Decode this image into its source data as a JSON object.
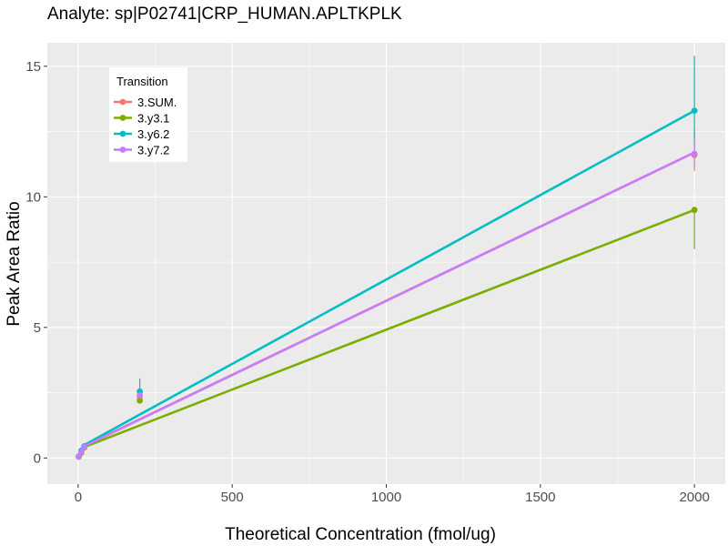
{
  "chart_data": {
    "type": "line",
    "title": "Analyte: sp|P02741|CRP_HUMAN.APLTKPLK",
    "xlabel": "Theoretical Concentration (fmol/ug)",
    "ylabel": "Peak Area Ratio",
    "xlim": [
      -100,
      2100
    ],
    "ylim": [
      -1.0,
      15.9
    ],
    "x_ticks": [
      0,
      500,
      1000,
      1500,
      2000
    ],
    "y_ticks": [
      0,
      5,
      10,
      15
    ],
    "grid": true,
    "legend": {
      "title": "Transition",
      "position": "top-left"
    },
    "series": [
      {
        "name": "3.SUM.",
        "color": "#F8766D",
        "fit": [
          [
            20,
            0.46
          ],
          [
            2000,
            11.7
          ]
        ],
        "points": [
          {
            "x": 2,
            "y": 0.05,
            "lo": 0.05,
            "hi": 0.05
          },
          {
            "x": 10,
            "y": 0.25,
            "lo": 0.25,
            "hi": 0.25
          },
          {
            "x": 20,
            "y": 0.42,
            "lo": 0.42,
            "hi": 0.42
          },
          {
            "x": 200,
            "y": 2.35,
            "lo": 2.25,
            "hi": 2.45
          },
          {
            "x": 2000,
            "y": 11.6,
            "lo": 11.0,
            "hi": 12.6
          }
        ]
      },
      {
        "name": "3.y3.1",
        "color": "#7CAE00",
        "fit": [
          [
            20,
            0.42
          ],
          [
            2000,
            9.5
          ]
        ],
        "points": [
          {
            "x": 2,
            "y": 0.05,
            "lo": 0.05,
            "hi": 0.05
          },
          {
            "x": 10,
            "y": 0.2,
            "lo": 0.2,
            "hi": 0.2
          },
          {
            "x": 20,
            "y": 0.4,
            "lo": 0.4,
            "hi": 0.4
          },
          {
            "x": 200,
            "y": 2.2,
            "lo": 2.1,
            "hi": 2.3
          },
          {
            "x": 2000,
            "y": 9.5,
            "lo": 8.0,
            "hi": 9.5
          }
        ]
      },
      {
        "name": "3.y6.2",
        "color": "#00BFC4",
        "fit": [
          [
            20,
            0.5
          ],
          [
            2000,
            13.3
          ]
        ],
        "points": [
          {
            "x": 2,
            "y": 0.06,
            "lo": 0.06,
            "hi": 0.06
          },
          {
            "x": 10,
            "y": 0.28,
            "lo": 0.28,
            "hi": 0.28
          },
          {
            "x": 20,
            "y": 0.45,
            "lo": 0.45,
            "hi": 0.45
          },
          {
            "x": 200,
            "y": 2.55,
            "lo": 2.3,
            "hi": 3.05
          },
          {
            "x": 2000,
            "y": 13.3,
            "lo": 11.7,
            "hi": 15.4
          }
        ]
      },
      {
        "name": "3.y7.2",
        "color": "#C77CFF",
        "fit": [
          [
            20,
            0.45
          ],
          [
            2000,
            11.7
          ]
        ],
        "points": [
          {
            "x": 2,
            "y": 0.05,
            "lo": 0.05,
            "hi": 0.05
          },
          {
            "x": 10,
            "y": 0.24,
            "lo": 0.24,
            "hi": 0.24
          },
          {
            "x": 20,
            "y": 0.42,
            "lo": 0.42,
            "hi": 0.42
          },
          {
            "x": 200,
            "y": 2.4,
            "lo": 2.3,
            "hi": 2.5
          },
          {
            "x": 2000,
            "y": 11.65,
            "lo": 11.2,
            "hi": 12.2
          }
        ]
      }
    ]
  }
}
